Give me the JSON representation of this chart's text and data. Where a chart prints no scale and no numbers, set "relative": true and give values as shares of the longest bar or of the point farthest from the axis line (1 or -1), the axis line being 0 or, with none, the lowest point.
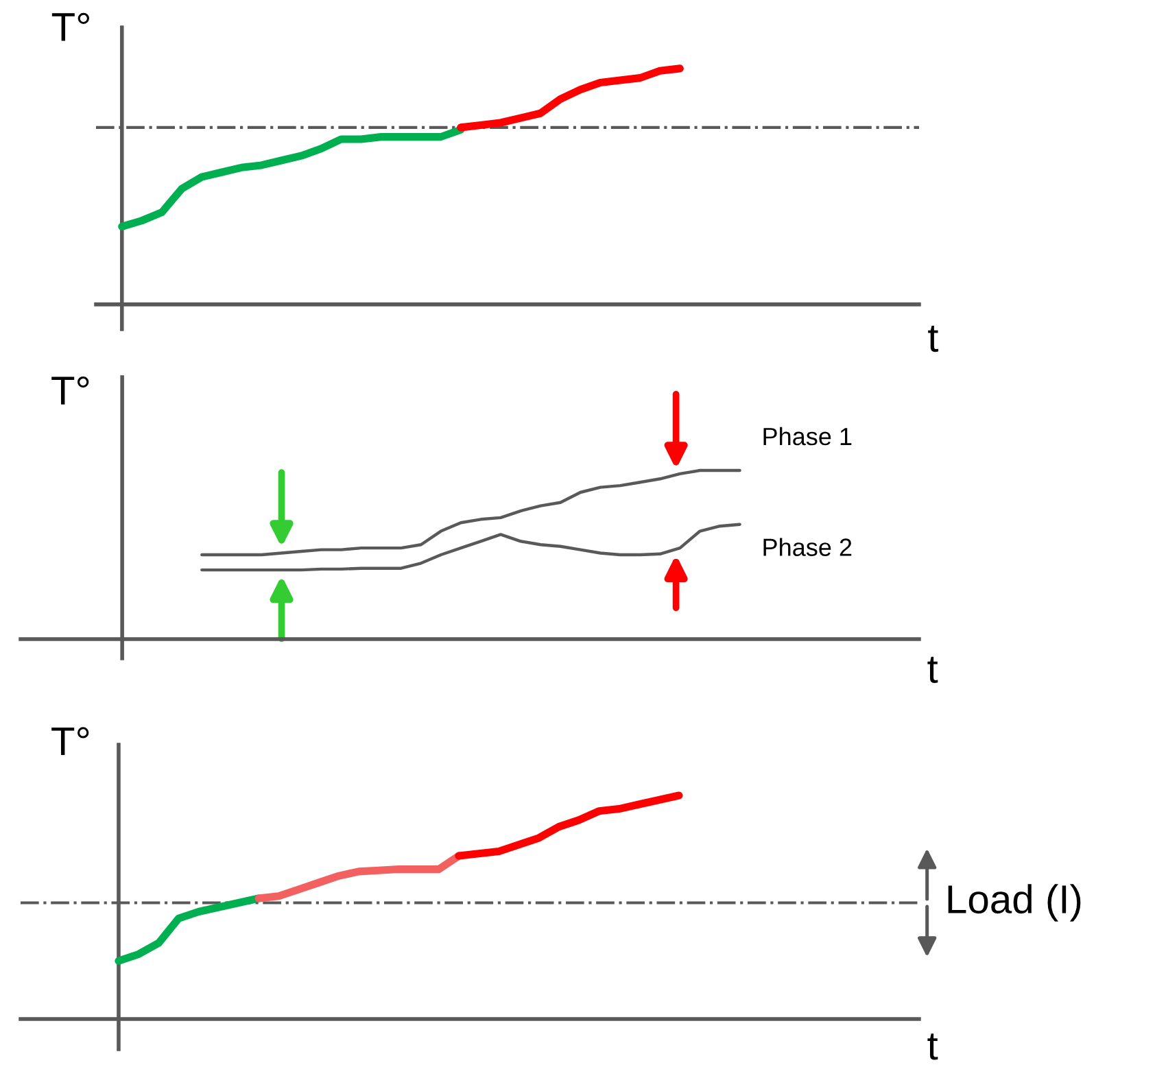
{
  "chart_data": [
    {
      "type": "line",
      "relative": true,
      "xlabel": "t",
      "ylabel": "T°",
      "marker": "none",
      "line_style": "solid",
      "categories": [
        null,
        null,
        null,
        null,
        null,
        null,
        null,
        null,
        null,
        null,
        null,
        null,
        null,
        null,
        null,
        null,
        null,
        null,
        null,
        null,
        null,
        null,
        null,
        null,
        null,
        null,
        null,
        null,
        null
      ],
      "series": [
        {
          "color": "#00b050",
          "values": [
            0.33,
            0.355,
            0.39,
            0.49,
            0.54,
            0.56,
            0.58,
            0.59,
            0.61,
            0.63,
            0.66,
            0.7,
            0.7,
            0.71,
            0.71,
            0.71,
            0.71,
            0.74,
            null,
            null,
            null,
            null,
            null,
            null,
            null,
            null,
            null,
            null,
            null
          ]
        },
        {
          "color": "#ff0000",
          "values": [
            null,
            null,
            null,
            null,
            null,
            null,
            null,
            null,
            null,
            null,
            null,
            null,
            null,
            null,
            null,
            null,
            null,
            0.75,
            0.76,
            0.77,
            0.79,
            0.81,
            0.87,
            0.91,
            0.94,
            0.95,
            0.96,
            0.99,
            1
          ]
        }
      ],
      "ref_lines": [
        {
          "axis": "y",
          "value": 0.75,
          "color": "#595959",
          "line_style": "dashdot"
        }
      ]
    },
    {
      "type": "line",
      "relative": true,
      "xlabel": "t",
      "ylabel": "T°",
      "marker": "none",
      "line_style": "solid",
      "categories": [
        null,
        null,
        null,
        null,
        null,
        null,
        null,
        null,
        null,
        null,
        null,
        null,
        null,
        null,
        null,
        null,
        null,
        null,
        null,
        null,
        null,
        null,
        null,
        null,
        null,
        null,
        null,
        null,
        null,
        null,
        null,
        null
      ],
      "series": [
        {
          "name": "Phase 1",
          "color": "#595959",
          "values": [
            null,
            null,
            null,
            null,
            0.5,
            0.5,
            0.5,
            0.5,
            0.51,
            0.52,
            0.53,
            0.53,
            0.54,
            0.54,
            0.54,
            0.56,
            0.64,
            0.69,
            0.71,
            0.72,
            0.76,
            0.79,
            0.81,
            0.87,
            0.9,
            0.91,
            0.93,
            0.95,
            0.98,
            1,
            1,
            1
          ]
        },
        {
          "name": "Phase 2",
          "color": "#595959",
          "values": [
            null,
            null,
            null,
            null,
            0.41,
            0.41,
            0.41,
            0.41,
            0.41,
            0.41,
            0.415,
            0.415,
            0.42,
            0.42,
            0.42,
            0.45,
            0.5,
            0.54,
            0.58,
            0.62,
            0.58,
            0.56,
            0.55,
            0.53,
            0.51,
            0.5,
            0.5,
            0.505,
            0.54,
            0.64,
            0.67,
            0.68
          ]
        }
      ]
    },
    {
      "type": "line",
      "relative": true,
      "xlabel": "t",
      "ylabel": "T°",
      "marker": "none",
      "line_style": "solid",
      "categories": [
        null,
        null,
        null,
        null,
        null,
        null,
        null,
        null,
        null,
        null,
        null,
        null,
        null,
        null,
        null,
        null,
        null,
        null,
        null,
        null,
        null,
        null,
        null,
        null,
        null,
        null,
        null,
        null,
        null
      ],
      "series": [
        {
          "color": "#00b050",
          "values": [
            0.26,
            0.29,
            0.34,
            0.45,
            0.48,
            0.5,
            0.52,
            0.54,
            null,
            null,
            null,
            null,
            null,
            null,
            null,
            null,
            null,
            null,
            null,
            null,
            null,
            null,
            null,
            null,
            null,
            null,
            null,
            null,
            null
          ]
        },
        {
          "color": "#f26060",
          "values": [
            null,
            null,
            null,
            null,
            null,
            null,
            null,
            0.54,
            0.55,
            0.58,
            0.61,
            0.64,
            0.66,
            0.665,
            0.67,
            0.67,
            0.67,
            0.73,
            null,
            null,
            null,
            null,
            null,
            null,
            null,
            null,
            null,
            null,
            null
          ]
        },
        {
          "color": "#ff0000",
          "values": [
            null,
            null,
            null,
            null,
            null,
            null,
            null,
            null,
            null,
            null,
            null,
            null,
            null,
            null,
            null,
            null,
            null,
            0.73,
            0.74,
            0.75,
            0.78,
            0.81,
            0.86,
            0.89,
            0.93,
            0.94,
            0.96,
            0.98,
            1
          ]
        }
      ],
      "ref_lines": [
        {
          "axis": "y",
          "value": 0.52,
          "color": "#595959",
          "line_style": "dashdot"
        }
      ],
      "annotations": [
        "Load (I)"
      ]
    }
  ]
}
